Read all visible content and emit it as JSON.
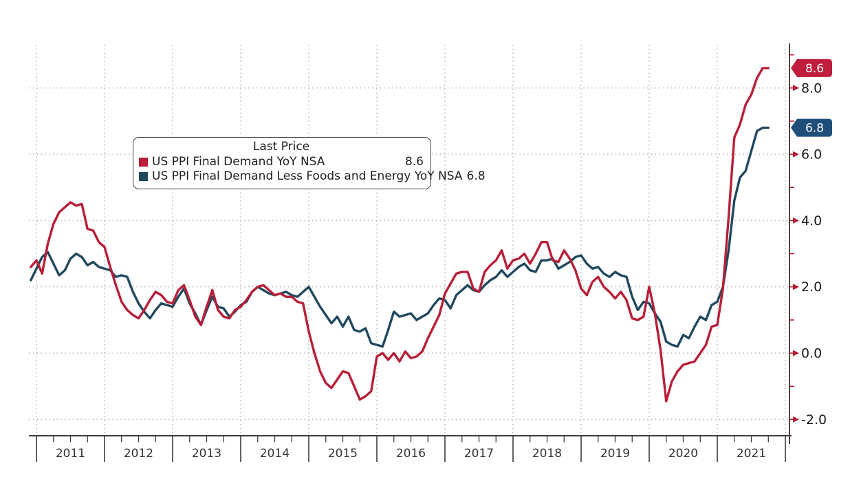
{
  "chart": {
    "legend": {
      "title": "Last Price",
      "series": [
        {
          "label": "US PPI Final Demand YoY NSA",
          "value": "8.6",
          "color": "#b81e38"
        },
        {
          "label": "US PPI Final Demand Less Foods and Energy YoY NSA",
          "value": "6.8",
          "color": "#20485e"
        }
      ]
    },
    "y_axis": {
      "side": "right",
      "tick_labels": [
        "8.0",
        "6.0",
        "4.0",
        "2.0",
        "0.0",
        "-2.0"
      ],
      "tick_values": [
        8,
        6,
        4,
        2,
        0,
        -2
      ],
      "minor_tick_values": [
        9,
        7,
        5,
        3,
        1,
        -1
      ],
      "tick_marker_color": "#b51d35",
      "label_color": "#1a1a1a"
    },
    "x_axis": {
      "year_labels": [
        "2011",
        "2012",
        "2013",
        "2014",
        "2015",
        "2016",
        "2017",
        "2018",
        "2019",
        "2020",
        "2021"
      ],
      "label_color": "#333333"
    },
    "badges": [
      {
        "text": "8.6",
        "value": 8.6,
        "color": "#c01d3c",
        "text_color": "#ffffff"
      },
      {
        "text": "6.8",
        "value": 6.8,
        "color": "#1f4e79",
        "text_color": "#ffffff"
      }
    ],
    "colors": {
      "headline_line": "#b81e38",
      "core_line": "#20485e",
      "grid": "#b3b3b3",
      "axis": "#3c3c3c",
      "background": "#ffffff"
    }
  },
  "chart_data": {
    "type": "line",
    "title": "",
    "x_unit": "month",
    "x_start": "2010-12",
    "x_end": "2021-10",
    "ylim": [
      -3,
      9.5
    ],
    "grid": "dotted, vertical at year starts and horizontal every 2.0",
    "legend_position": "upper left-center",
    "series": [
      {
        "name": "US PPI Final Demand YoY NSA",
        "color": "#b81e38",
        "last_price": 8.6,
        "values": [
          2.6,
          2.8,
          2.4,
          3.3,
          3.9,
          4.25,
          4.4,
          4.55,
          4.45,
          4.5,
          3.75,
          3.7,
          3.35,
          3.2,
          2.6,
          2.05,
          1.55,
          1.3,
          1.15,
          1.05,
          1.3,
          1.6,
          1.85,
          1.75,
          1.55,
          1.5,
          1.9,
          2.05,
          1.6,
          1.1,
          0.85,
          1.4,
          1.9,
          1.3,
          1.1,
          1.05,
          1.3,
          1.4,
          1.6,
          1.85,
          2.0,
          2.05,
          1.9,
          1.75,
          1.8,
          1.7,
          1.7,
          1.55,
          1.5,
          0.65,
          0.0,
          -0.55,
          -0.9,
          -1.05,
          -0.8,
          -0.55,
          -0.6,
          -1.0,
          -1.4,
          -1.3,
          -1.15,
          -0.1,
          0.0,
          -0.2,
          0.0,
          -0.25,
          0.05,
          -0.15,
          -0.1,
          0.05,
          0.45,
          0.8,
          1.15,
          1.8,
          2.1,
          2.4,
          2.45,
          2.45,
          1.95,
          1.85,
          2.45,
          2.65,
          2.8,
          3.1,
          2.55,
          2.8,
          2.85,
          3.0,
          2.7,
          3.0,
          3.35,
          3.35,
          2.8,
          2.75,
          3.1,
          2.85,
          2.5,
          1.95,
          1.75,
          2.15,
          2.3,
          2.0,
          1.85,
          1.65,
          1.85,
          1.6,
          1.05,
          1.0,
          1.1,
          2.0,
          1.2,
          0.1,
          -1.45,
          -0.85,
          -0.55,
          -0.35,
          -0.3,
          -0.25,
          0.0,
          0.25,
          0.8,
          0.85,
          1.95,
          4.1,
          6.5,
          6.9,
          7.5,
          7.8,
          8.3,
          8.6,
          8.6
        ]
      },
      {
        "name": "US PPI Final Demand Less Foods and Energy YoY NSA",
        "color": "#20485e",
        "last_price": 6.8,
        "values": [
          2.2,
          2.55,
          2.9,
          3.05,
          2.7,
          2.35,
          2.5,
          2.85,
          3.0,
          2.9,
          2.65,
          2.75,
          2.6,
          2.55,
          2.5,
          2.3,
          2.35,
          2.3,
          1.85,
          1.5,
          1.25,
          1.05,
          1.3,
          1.5,
          1.45,
          1.4,
          1.7,
          1.95,
          1.5,
          1.2,
          0.85,
          1.3,
          1.7,
          1.4,
          1.35,
          1.1,
          1.25,
          1.45,
          1.55,
          1.85,
          2.0,
          1.9,
          1.8,
          1.75,
          1.8,
          1.85,
          1.75,
          1.7,
          1.85,
          2.0,
          1.7,
          1.4,
          1.15,
          0.9,
          1.1,
          0.8,
          1.1,
          0.7,
          0.65,
          0.75,
          0.3,
          0.25,
          0.2,
          0.7,
          1.25,
          1.1,
          1.15,
          1.2,
          1.0,
          1.1,
          1.2,
          1.45,
          1.65,
          1.6,
          1.35,
          1.75,
          1.9,
          2.05,
          1.9,
          1.85,
          2.05,
          2.2,
          2.3,
          2.5,
          2.3,
          2.45,
          2.6,
          2.7,
          2.5,
          2.45,
          2.8,
          2.8,
          2.85,
          2.55,
          2.65,
          2.75,
          2.9,
          2.95,
          2.7,
          2.55,
          2.6,
          2.4,
          2.3,
          2.45,
          2.35,
          2.3,
          1.7,
          1.3,
          1.55,
          1.5,
          1.2,
          0.95,
          0.35,
          0.25,
          0.2,
          0.55,
          0.45,
          0.8,
          1.1,
          1.0,
          1.45,
          1.55,
          2.0,
          3.1,
          4.6,
          5.3,
          5.5,
          6.1,
          6.7,
          6.8,
          6.8
        ]
      }
    ]
  }
}
